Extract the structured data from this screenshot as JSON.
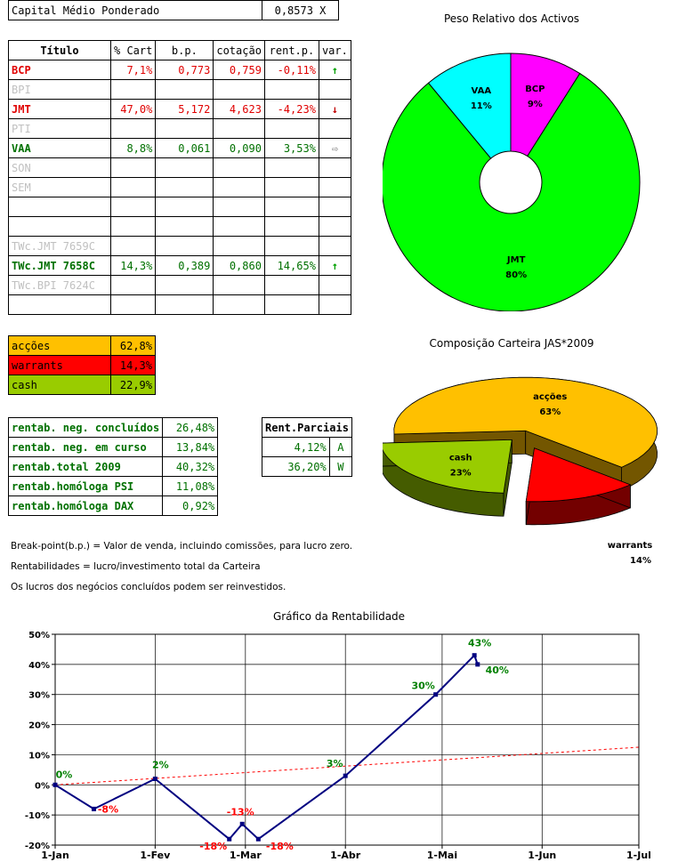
{
  "header": {
    "label": "Capital Médio Ponderado",
    "value": "0,8573 X"
  },
  "portfolio": {
    "columns": [
      "Título",
      "% Cart",
      "b.p.",
      "cotação",
      "rent.p.",
      "var."
    ],
    "rows": [
      {
        "title": "BCP",
        "pct": "7,1%",
        "bp": "0,773",
        "cot": "0,759",
        "rent": "-0,11%",
        "var": "↑",
        "color": "red",
        "var_color": "#00a000"
      },
      {
        "title": "BPI",
        "pct": "",
        "bp": "",
        "cot": "",
        "rent": "",
        "var": "",
        "color": "gray",
        "var_color": ""
      },
      {
        "title": "JMT",
        "pct": "47,0%",
        "bp": "5,172",
        "cot": "4,623",
        "rent": "-4,23%",
        "var": "↓",
        "color": "red",
        "var_color": "#c00000"
      },
      {
        "title": "PTI",
        "pct": "",
        "bp": "",
        "cot": "",
        "rent": "",
        "var": "",
        "color": "gray",
        "var_color": ""
      },
      {
        "title": "VAA",
        "pct": "8,8%",
        "bp": "0,061",
        "cot": "0,090",
        "rent": "3,53%",
        "var": "⇨",
        "color": "grn",
        "var_color": "#909090"
      },
      {
        "title": "SON",
        "pct": "",
        "bp": "",
        "cot": "",
        "rent": "",
        "var": "",
        "color": "gray",
        "var_color": ""
      },
      {
        "title": "SEM",
        "pct": "",
        "bp": "",
        "cot": "",
        "rent": "",
        "var": "",
        "color": "gray",
        "var_color": ""
      },
      {
        "title": "",
        "pct": "",
        "bp": "",
        "cot": "",
        "rent": "",
        "var": "",
        "color": "gray",
        "var_color": ""
      },
      {
        "title": "",
        "pct": "",
        "bp": "",
        "cot": "",
        "rent": "",
        "var": "",
        "color": "gray",
        "var_color": ""
      },
      {
        "title": "TWc.JMT 7659C",
        "pct": "",
        "bp": "",
        "cot": "",
        "rent": "",
        "var": "",
        "color": "gray",
        "var_color": ""
      },
      {
        "title": "TWc.JMT 7658C",
        "pct": "14,3%",
        "bp": "0,389",
        "cot": "0,860",
        "rent": "14,65%",
        "var": "↑",
        "color": "grn",
        "var_color": "#00a000"
      },
      {
        "title": "TWc.BPI 7624C",
        "pct": "",
        "bp": "",
        "cot": "",
        "rent": "",
        "var": "",
        "color": "gray",
        "var_color": ""
      },
      {
        "title": "",
        "pct": "",
        "bp": "",
        "cot": "",
        "rent": "",
        "var": "",
        "color": "gray",
        "var_color": ""
      }
    ]
  },
  "composition_table": [
    {
      "label": "acções",
      "value": "62,8%",
      "bg": "#ffc000",
      "fg": "#000000"
    },
    {
      "label": "warrants",
      "value": "14,3%",
      "bg": "#ff0000",
      "fg": "#000000"
    },
    {
      "label": "cash",
      "value": "22,9%",
      "bg": "#99cc00",
      "fg": "#000000"
    }
  ],
  "rentab_table": [
    {
      "label": "rentab. neg. concluídos",
      "value": "26,48%"
    },
    {
      "label": "rentab. neg. em curso",
      "value": "13,84%"
    },
    {
      "label": "rentab.total 2009",
      "value": "40,32%"
    },
    {
      "label": "rentab.homóloga PSI",
      "value": "11,08%"
    },
    {
      "label": "rentab.homóloga DAX",
      "value": "0,92%"
    }
  ],
  "rent_parciais": {
    "title": "Rent.Parciais",
    "rows": [
      {
        "value": "4,12%",
        "code": "A"
      },
      {
        "value": "36,20%",
        "code": "W"
      }
    ]
  },
  "notes": [
    "Break-point(b.p.) = Valor de venda, incluindo comissões, para lucro zero.",
    "Rentabilidades = lucro/investimento total da Carteira",
    "Os lucros dos negócios concluídos podem ser reinvestidos."
  ],
  "chart_data": [
    {
      "type": "pie",
      "title": "Peso Relativo dos Activos",
      "labels": [
        "BCP",
        "JMT",
        "VAA"
      ],
      "values": [
        9,
        80,
        11
      ],
      "value_labels": [
        "9%",
        "80%",
        "11%"
      ],
      "colors": [
        "#ff00ff",
        "#00ff00",
        "#00ffff"
      ],
      "donut": true
    },
    {
      "type": "pie",
      "title": "Composição Carteira JAS*2009",
      "labels": [
        "acções",
        "warrants",
        "cash"
      ],
      "values": [
        63,
        14,
        23
      ],
      "value_labels": [
        "63%",
        "14%",
        "23%"
      ],
      "colors": [
        "#ffc000",
        "#ff0000",
        "#99cc00"
      ],
      "style": "3d-exploded"
    },
    {
      "type": "line",
      "title": "Gráfico da Rentabilidade",
      "x_ticks": [
        "1-Jan",
        "1-Fev",
        "1-Mar",
        "1-Abr",
        "1-Mai",
        "1-Jun",
        "1-Jul"
      ],
      "y_ticks": [
        "50%",
        "40%",
        "30%",
        "20%",
        "10%",
        "0%",
        "-10%",
        "-20%"
      ],
      "ylim": [
        -20,
        50
      ],
      "grid": true,
      "series": [
        {
          "x": [
            "2009-01-01",
            "2009-01-13",
            "2009-02-01",
            "2009-02-24",
            "2009-02-28",
            "2009-03-05",
            "2009-04-01",
            "2009-04-29",
            "2009-05-11",
            "2009-05-12"
          ],
          "values": [
            0,
            -8,
            2,
            -18,
            -13,
            -18,
            3,
            30,
            43,
            40
          ],
          "labels": [
            "0%",
            "-8%",
            "2%",
            "-18%",
            "-13%",
            "-18%",
            "3%",
            "30%",
            "43%",
            "40%"
          ],
          "color": "#000080"
        }
      ],
      "trend": {
        "x": [
          "2009-01-01",
          "2009-07-01"
        ],
        "values": [
          0,
          12.5
        ],
        "color": "#ff0000"
      },
      "positive_label_color": "#008000",
      "negative_label_color": "#ff0000"
    }
  ]
}
